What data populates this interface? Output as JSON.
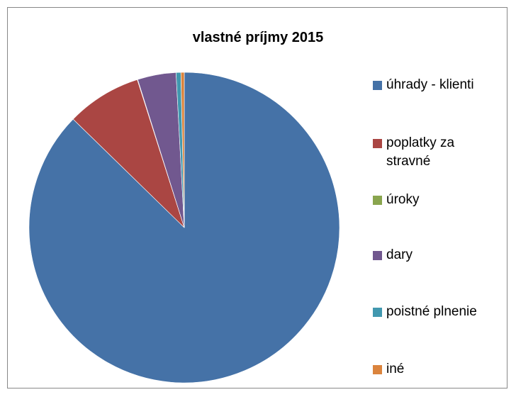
{
  "chart_data": {
    "type": "pie",
    "title": "vlastné príjmy 2015",
    "categories": [
      "úhrady - klienti",
      "poplatky za stravné",
      "úroky",
      "dary",
      "poistné plnenie",
      "iné"
    ],
    "values": [
      87.3,
      7.8,
      0.05,
      4.0,
      0.5,
      0.35
    ],
    "colors": [
      "#4572a7",
      "#aa4643",
      "#89a54e",
      "#71588f",
      "#4198af",
      "#db843d"
    ],
    "legend": "right"
  }
}
